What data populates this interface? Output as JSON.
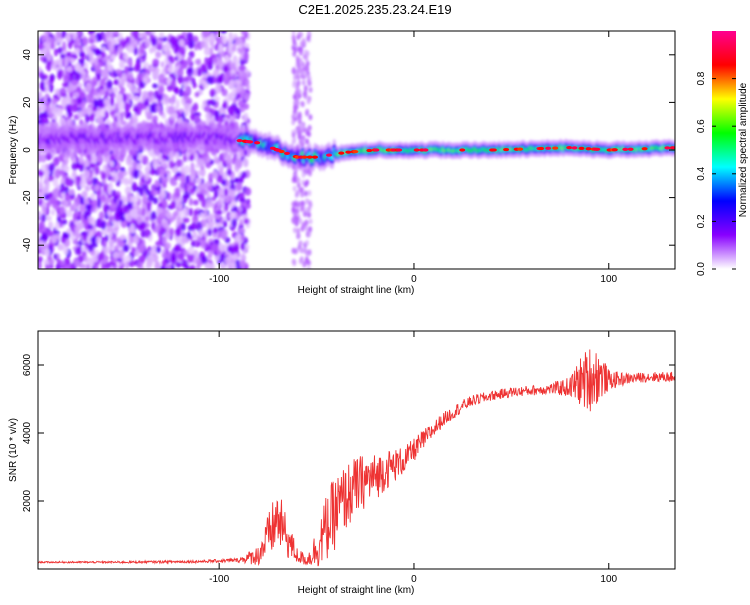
{
  "title": "C2E1.2025.235.23.24.E19",
  "chart_data": [
    {
      "type": "heatmap",
      "xlabel": "Height of straight line (km)",
      "ylabel": "Frequency (Hz)",
      "xlim": [
        -193,
        134
      ],
      "ylim": [
        -50,
        50
      ],
      "x_ticks": [
        -100,
        0,
        100
      ],
      "x_tick_labels": [
        "-100",
        "0",
        "100"
      ],
      "y_ticks": [
        -40,
        -20,
        0,
        20,
        40
      ],
      "y_tick_labels": [
        "-40",
        "-20",
        "0",
        "20",
        "40"
      ],
      "colorbar": {
        "label": "Normalized spectral amplitude",
        "range": [
          0,
          1
        ],
        "ticks": [
          0.0,
          0.2,
          0.4,
          0.6,
          0.8
        ],
        "tick_labels": [
          "0.0",
          "0.2",
          "0.4",
          "0.6",
          "0.8"
        ],
        "colors": [
          "#ffffff",
          "#8800ff",
          "#0000ff",
          "#00ffff",
          "#00ff00",
          "#ffff00",
          "#ff0000",
          "#ff0090"
        ]
      },
      "ridge": [
        [
          -193,
          5
        ],
        [
          -150,
          5
        ],
        [
          -110,
          5
        ],
        [
          -90,
          4
        ],
        [
          -80,
          3
        ],
        [
          -70,
          0
        ],
        [
          -60,
          -3
        ],
        [
          -50,
          -3
        ],
        [
          -35,
          -1
        ],
        [
          -20,
          0
        ],
        [
          0,
          0
        ],
        [
          40,
          0
        ],
        [
          80,
          1
        ],
        [
          100,
          0
        ],
        [
          134,
          1
        ]
      ]
    },
    {
      "type": "line",
      "xlabel": "Height of straight line (km)",
      "ylabel": "SNR (10 * v/v)",
      "xlim": [
        -193,
        134
      ],
      "ylim": [
        0,
        7000
      ],
      "x_ticks": [
        -100,
        0,
        100
      ],
      "x_tick_labels": [
        "-100",
        "0",
        "100"
      ],
      "y_ticks": [
        2000,
        4000,
        6000
      ],
      "y_tick_labels": [
        "2000",
        "4000",
        "6000"
      ],
      "color": "#ee3333",
      "series": [
        {
          "name": "SNR",
          "x": [
            -193,
            -150,
            -110,
            -90,
            -80,
            -75,
            -70,
            -65,
            -60,
            -55,
            -50,
            -45,
            -40,
            -35,
            -30,
            -25,
            -20,
            -15,
            -10,
            -5,
            0,
            5,
            10,
            15,
            20,
            25,
            30,
            40,
            50,
            60,
            70,
            80,
            85,
            90,
            95,
            100,
            110,
            120,
            134
          ],
          "values": [
            200,
            200,
            220,
            260,
            400,
            900,
            1500,
            900,
            400,
            250,
            600,
            1200,
            1700,
            2100,
            2400,
            2600,
            2700,
            2900,
            3050,
            3200,
            3500,
            3800,
            4100,
            4400,
            4600,
            4800,
            4950,
            5100,
            5200,
            5250,
            5300,
            5350,
            5500,
            5600,
            5700,
            5550,
            5600,
            5650,
            5650
          ],
          "noise": [
            20,
            30,
            40,
            60,
            300,
            700,
            900,
            600,
            250,
            150,
            600,
            1000,
            1100,
            1000,
            900,
            800,
            700,
            600,
            500,
            400,
            350,
            300,
            250,
            200,
            200,
            180,
            160,
            150,
            150,
            150,
            160,
            300,
            700,
            1000,
            800,
            300,
            150,
            150,
            150
          ]
        }
      ]
    }
  ]
}
